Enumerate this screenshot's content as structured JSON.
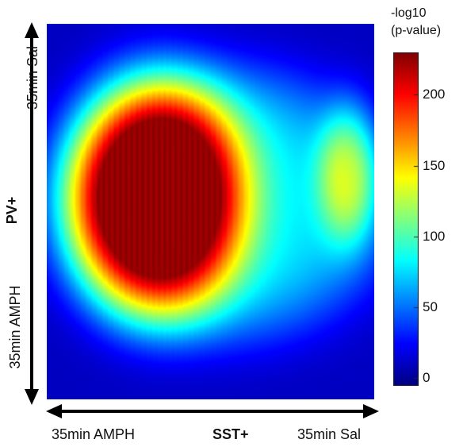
{
  "chart_data": {
    "type": "heatmap",
    "xlabel": "SST+",
    "x_ends": [
      "35min AMPH",
      "35min Sal"
    ],
    "ylabel": "PV+",
    "y_ends": [
      "35min Sal",
      "35min AMPH"
    ],
    "colorbar": {
      "title_line1": "-log10",
      "title_line2": "(p-value)",
      "ticks": [
        0,
        50,
        100,
        150,
        200
      ],
      "range": [
        -5,
        230
      ],
      "colormap": "jet"
    },
    "value_range": [
      0,
      225
    ],
    "hotspots": [
      {
        "region": "left-center",
        "peak_value": 225
      },
      {
        "region": "right-upper",
        "peak_value": 150
      }
    ],
    "background_value": 10
  }
}
